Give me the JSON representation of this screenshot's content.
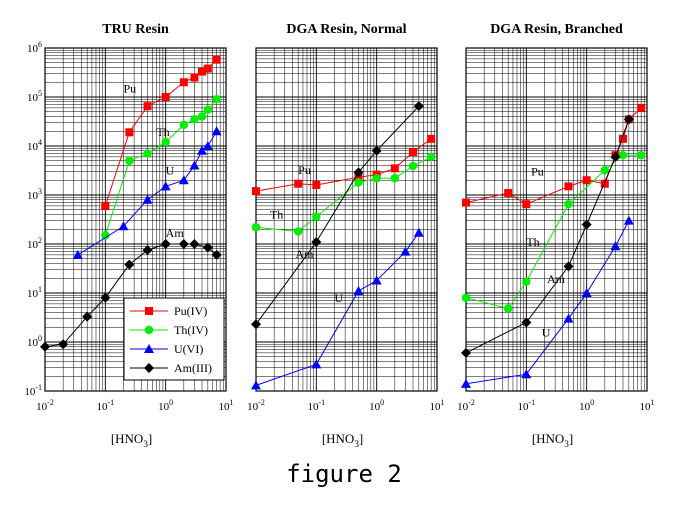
{
  "figure_caption": "figure 2",
  "colors": {
    "Pu": "#ff0000",
    "Th": "#00ee00",
    "U": "#0000ff",
    "Am": "#000000",
    "grid": "#000000"
  },
  "legend": {
    "placement": "bottom-right of first panel",
    "entries": [
      {
        "series": "Pu",
        "label": "Pu(IV)",
        "marker": "square"
      },
      {
        "series": "Th",
        "label": "Th(IV)",
        "marker": "circle"
      },
      {
        "series": "U",
        "label": "U(VI)",
        "marker": "triangle"
      },
      {
        "series": "Am",
        "label": "Am(III)",
        "marker": "diamond"
      }
    ]
  },
  "chart_data": [
    {
      "type": "line",
      "title": "TRU Resin",
      "xlabel": "[HNO3]",
      "x_scale": "log",
      "y_scale": "log",
      "xlim": [
        0.01,
        10
      ],
      "ylim": [
        0.1,
        1000000
      ],
      "x_ticks": [
        "10-2",
        "10-1",
        "100",
        "101"
      ],
      "y_ticks": [
        "10-1",
        "100",
        "101",
        "102",
        "103",
        "104",
        "105",
        "106"
      ],
      "grid": true,
      "series": [
        {
          "name": "Pu(IV)",
          "key": "Pu",
          "label_text": "Pu",
          "label_at": [
            0.2,
            125000
          ],
          "points": [
            [
              0.1,
              600
            ],
            [
              0.25,
              19000
            ],
            [
              0.5,
              65000
            ],
            [
              1,
              100000
            ],
            [
              2,
              200000
            ],
            [
              3,
              250000
            ],
            [
              4,
              330000
            ],
            [
              5,
              380000
            ],
            [
              7,
              580000
            ]
          ]
        },
        {
          "name": "Th(IV)",
          "key": "Th",
          "label_text": "Th",
          "label_at": [
            0.7,
            16000
          ],
          "points": [
            [
              0.1,
              150
            ],
            [
              0.25,
              5000
            ],
            [
              0.5,
              7000
            ],
            [
              1,
              12000
            ],
            [
              2,
              27000
            ],
            [
              3,
              35000
            ],
            [
              4,
              40000
            ],
            [
              5,
              55000
            ],
            [
              7,
              90000
            ]
          ]
        },
        {
          "name": "U(VI)",
          "key": "U",
          "label_text": "U",
          "label_at": [
            1.0,
            2600
          ],
          "points": [
            [
              0.035,
              60
            ],
            [
              0.2,
              230
            ],
            [
              0.5,
              800
            ],
            [
              1,
              1500
            ],
            [
              2,
              2000
            ],
            [
              3,
              4000
            ],
            [
              4,
              8000
            ],
            [
              5,
              10000
            ],
            [
              7,
              20000
            ]
          ]
        },
        {
          "name": "Am(III)",
          "key": "Am",
          "label_text": "Am",
          "label_at": [
            1.0,
            140
          ],
          "points": [
            [
              0.01,
              0.8
            ],
            [
              0.02,
              0.9
            ],
            [
              0.05,
              3.3
            ],
            [
              0.1,
              8
            ],
            [
              0.25,
              38
            ],
            [
              0.5,
              75
            ],
            [
              1,
              100
            ],
            [
              2,
              100
            ],
            [
              3,
              100
            ],
            [
              5,
              85
            ],
            [
              7,
              60
            ]
          ]
        }
      ]
    },
    {
      "type": "line",
      "title": "DGA Resin, Normal",
      "xlabel": "[HNO3]",
      "x_scale": "log",
      "y_scale": "log",
      "xlim": [
        0.01,
        10
      ],
      "ylim": [
        0.1,
        1000000
      ],
      "x_ticks": [
        "10-2",
        "10-1",
        "100",
        "101"
      ],
      "y_ticks": [],
      "grid": true,
      "series": [
        {
          "name": "Pu(IV)",
          "key": "Pu",
          "label_text": "Pu",
          "label_at": [
            0.05,
            2700
          ],
          "points": [
            [
              0.01,
              1200
            ],
            [
              0.05,
              1700
            ],
            [
              0.1,
              1600
            ],
            [
              0.5,
              2300
            ],
            [
              1,
              2600
            ],
            [
              2,
              3500
            ],
            [
              4,
              7500
            ],
            [
              8,
              14000
            ]
          ]
        },
        {
          "name": "Th(IV)",
          "key": "Th",
          "label_text": "Th",
          "label_at": [
            0.017,
            330
          ],
          "points": [
            [
              0.01,
              220
            ],
            [
              0.05,
              180
            ],
            [
              0.1,
              360
            ],
            [
              0.5,
              1800
            ],
            [
              1,
              2200
            ],
            [
              2,
              2200
            ],
            [
              4,
              3900
            ],
            [
              8,
              6000
            ]
          ]
        },
        {
          "name": "U(VI)",
          "key": "U",
          "label_text": "U",
          "label_at": [
            0.2,
            6.5
          ],
          "points": [
            [
              0.01,
              0.13
            ],
            [
              0.1,
              0.35
            ],
            [
              0.5,
              11
            ],
            [
              1,
              18
            ],
            [
              3,
              70
            ],
            [
              5,
              170
            ]
          ]
        },
        {
          "name": "Am(III)",
          "key": "Am",
          "label_text": "Am",
          "label_at": [
            0.045,
            52
          ],
          "points": [
            [
              0.01,
              2.3
            ],
            [
              0.1,
              110
            ],
            [
              0.5,
              2900
            ],
            [
              1,
              8000
            ],
            [
              5,
              65000
            ]
          ]
        }
      ]
    },
    {
      "type": "line",
      "title": "DGA Resin, Branched",
      "xlabel": "[HNO3]",
      "x_scale": "log",
      "y_scale": "log",
      "xlim": [
        0.01,
        10
      ],
      "ylim": [
        0.1,
        1000000
      ],
      "x_ticks": [
        "10-2",
        "10-1",
        "100",
        "101"
      ],
      "y_ticks": [],
      "grid": true,
      "series": [
        {
          "name": "Pu(IV)",
          "key": "Pu",
          "label_text": "Pu",
          "label_at": [
            0.12,
            2500
          ],
          "points": [
            [
              0.01,
              700
            ],
            [
              0.05,
              1100
            ],
            [
              0.1,
              650
            ],
            [
              0.5,
              1500
            ],
            [
              1,
              2000
            ],
            [
              2,
              1700
            ],
            [
              3,
              6500
            ],
            [
              4,
              14000
            ],
            [
              5,
              35000
            ],
            [
              8,
              60000
            ]
          ]
        },
        {
          "name": "Th(IV)",
          "key": "Th",
          "label_text": "Th",
          "label_at": [
            0.1,
            90
          ],
          "points": [
            [
              0.01,
              8
            ],
            [
              0.05,
              4.8
            ],
            [
              0.1,
              17
            ],
            [
              0.5,
              650
            ],
            [
              2,
              3200
            ],
            [
              4,
              6500
            ],
            [
              8,
              6500
            ]
          ]
        },
        {
          "name": "U(VI)",
          "key": "U",
          "label_text": "U",
          "label_at": [
            0.18,
            1.3
          ],
          "points": [
            [
              0.01,
              0.14
            ],
            [
              0.1,
              0.22
            ],
            [
              0.5,
              3
            ],
            [
              1,
              10
            ],
            [
              3,
              90
            ],
            [
              5,
              300
            ]
          ]
        },
        {
          "name": "Am(III)",
          "key": "Am",
          "label_text": "Am",
          "label_at": [
            0.22,
            16
          ],
          "points": [
            [
              0.01,
              0.6
            ],
            [
              0.1,
              2.5
            ],
            [
              0.5,
              35
            ],
            [
              1,
              250
            ],
            [
              3,
              6000
            ],
            [
              5,
              35000
            ]
          ]
        }
      ]
    }
  ]
}
